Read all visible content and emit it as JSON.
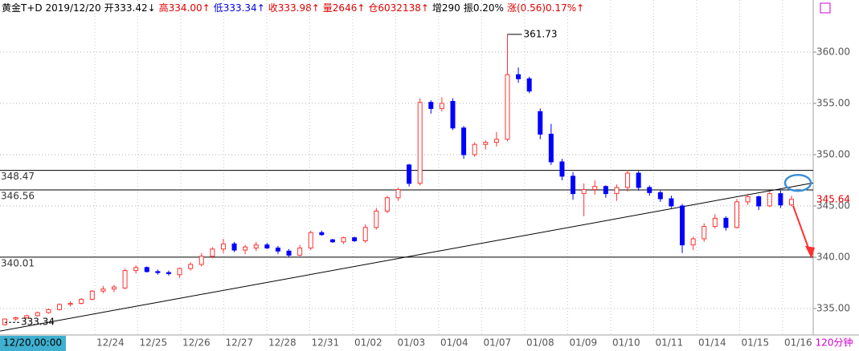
{
  "chart_data": {
    "type": "candlestick",
    "header": [
      {
        "text": "黄金T+D 2019/12/20",
        "color": "#000000"
      },
      {
        "text": "开333.42↓",
        "color": "#000000"
      },
      {
        "text": "高334.00↑",
        "color": "#e00000"
      },
      {
        "text": "低333.34↑",
        "color": "#0000e0"
      },
      {
        "text": "收333.98↑",
        "color": "#e00000"
      },
      {
        "text": "量2646↑",
        "color": "#e00000"
      },
      {
        "text": "仓6032138↑",
        "color": "#e00000"
      },
      {
        "text": "增290",
        "color": "#000000"
      },
      {
        "text": "振0.20%",
        "color": "#000000"
      },
      {
        "text": "涨(0.56)0.17%↑",
        "color": "#e00000"
      }
    ],
    "x_labels": [
      "12/20,00:00",
      "12/24",
      "12/25",
      "12/26",
      "12/27",
      "12/28",
      "12/31",
      "01/02",
      "01/03",
      "01/04",
      "01/07",
      "01/08",
      "01/09",
      "01/10",
      "01/11",
      "01/14",
      "01/15",
      "01/16"
    ],
    "period": "120分钟",
    "up_color": "#ff3232",
    "down_color": "#0000ff",
    "open": [
      333.42,
      333.98,
      334.1,
      334.3,
      334.6,
      334.9,
      335.4,
      335.5,
      335.9,
      336.7,
      336.9,
      337.0,
      338.7,
      339.0,
      338.6,
      338.5,
      338.3,
      338.9,
      339.3,
      340.1,
      340.8,
      341.3,
      340.7,
      340.9,
      341.2,
      340.9,
      340.6,
      340.2,
      340.9,
      342.4,
      341.7,
      341.5,
      341.9,
      341.6,
      342.9,
      344.5,
      345.8,
      349.0,
      347.2,
      355.1,
      354.5,
      355.2,
      352.6,
      350.0,
      351.0,
      351.2,
      351.5,
      357.8,
      357.4,
      354.2,
      352.0,
      349.3,
      347.9,
      346.2,
      346.6,
      346.9,
      346.2,
      346.8,
      348.2,
      346.8,
      346.3,
      345.7,
      345.0,
      341.2,
      341.8,
      343.0,
      343.8,
      342.9,
      345.4,
      345.9,
      345.0,
      346.2,
      345.1
    ],
    "high": [
      334.0,
      334.2,
      334.4,
      334.7,
      335.0,
      335.5,
      335.7,
      336.0,
      336.8,
      337.2,
      337.3,
      338.9,
      339.2,
      339.1,
      338.8,
      338.7,
      339.0,
      339.5,
      340.4,
      341.0,
      341.8,
      341.5,
      341.2,
      341.5,
      341.4,
      341.1,
      340.8,
      341.2,
      342.6,
      342.6,
      341.8,
      342.0,
      342.0,
      343.2,
      344.8,
      346.0,
      346.8,
      349.1,
      355.5,
      355.3,
      355.6,
      355.5,
      352.8,
      351.2,
      351.4,
      352.2,
      361.73,
      358.5,
      357.6,
      354.5,
      353.0,
      349.6,
      348.3,
      347.2,
      347.5,
      347.0,
      347.1,
      348.5,
      348.4,
      347.0,
      346.5,
      346.0,
      345.2,
      342.0,
      343.3,
      344.2,
      344.0,
      345.7,
      346.2,
      346.0,
      346.4,
      346.5,
      346.0
    ],
    "low": [
      333.34,
      333.8,
      334.0,
      334.2,
      334.5,
      334.8,
      335.2,
      335.4,
      335.8,
      336.5,
      336.6,
      336.9,
      338.4,
      338.5,
      338.3,
      338.2,
      338.0,
      338.7,
      339.1,
      339.9,
      340.4,
      340.5,
      340.3,
      340.6,
      340.8,
      340.3,
      340.0,
      340.1,
      340.7,
      342.1,
      341.4,
      341.3,
      341.5,
      341.4,
      342.7,
      344.3,
      345.5,
      346.9,
      347.0,
      354.0,
      354.2,
      352.4,
      349.6,
      349.8,
      350.5,
      350.8,
      351.3,
      357.0,
      356.0,
      351.5,
      349.0,
      347.5,
      345.6,
      344.0,
      346.1,
      345.8,
      345.5,
      346.4,
      346.5,
      346.0,
      345.4,
      344.8,
      340.4,
      340.7,
      341.5,
      342.8,
      342.6,
      342.8,
      345.1,
      344.6,
      344.9,
      344.8,
      345.0
    ],
    "close": [
      333.98,
      334.1,
      334.3,
      334.6,
      334.9,
      335.4,
      335.5,
      335.9,
      336.7,
      336.9,
      337.1,
      338.7,
      339.0,
      338.6,
      338.5,
      338.4,
      338.9,
      339.3,
      340.1,
      340.8,
      341.3,
      340.7,
      341.0,
      341.2,
      340.9,
      340.6,
      340.2,
      340.9,
      342.4,
      342.2,
      341.5,
      341.9,
      341.6,
      342.9,
      344.5,
      345.8,
      346.6,
      347.2,
      355.1,
      354.5,
      355.0,
      352.6,
      350.0,
      351.0,
      351.2,
      351.5,
      357.8,
      357.4,
      356.2,
      352.0,
      349.3,
      347.9,
      346.2,
      346.6,
      346.9,
      346.2,
      346.8,
      348.2,
      346.8,
      346.3,
      345.7,
      345.0,
      341.2,
      341.8,
      343.0,
      343.8,
      342.9,
      345.4,
      345.9,
      345.0,
      346.2,
      345.1,
      345.64
    ],
    "ylim": [
      332.42,
      365.08
    ],
    "yticks": [
      {
        "value": 335,
        "label": "335.00"
      },
      {
        "value": 340,
        "label": "340.00"
      },
      {
        "value": 345,
        "label": "345.00"
      },
      {
        "value": 350,
        "label": "350.00"
      },
      {
        "value": 355,
        "label": "355.00"
      },
      {
        "value": 360,
        "label": "360.00"
      }
    ],
    "levels": [
      {
        "value": 348.47,
        "label": "348.47"
      },
      {
        "value": 346.56,
        "label": "346.56"
      },
      {
        "value": 340.01,
        "label": "340.01"
      }
    ],
    "trendline": [
      332.8,
      347.25
    ],
    "high_label": "361.73",
    "low_label": "333.34",
    "last_label": "345.64",
    "grid": true
  }
}
